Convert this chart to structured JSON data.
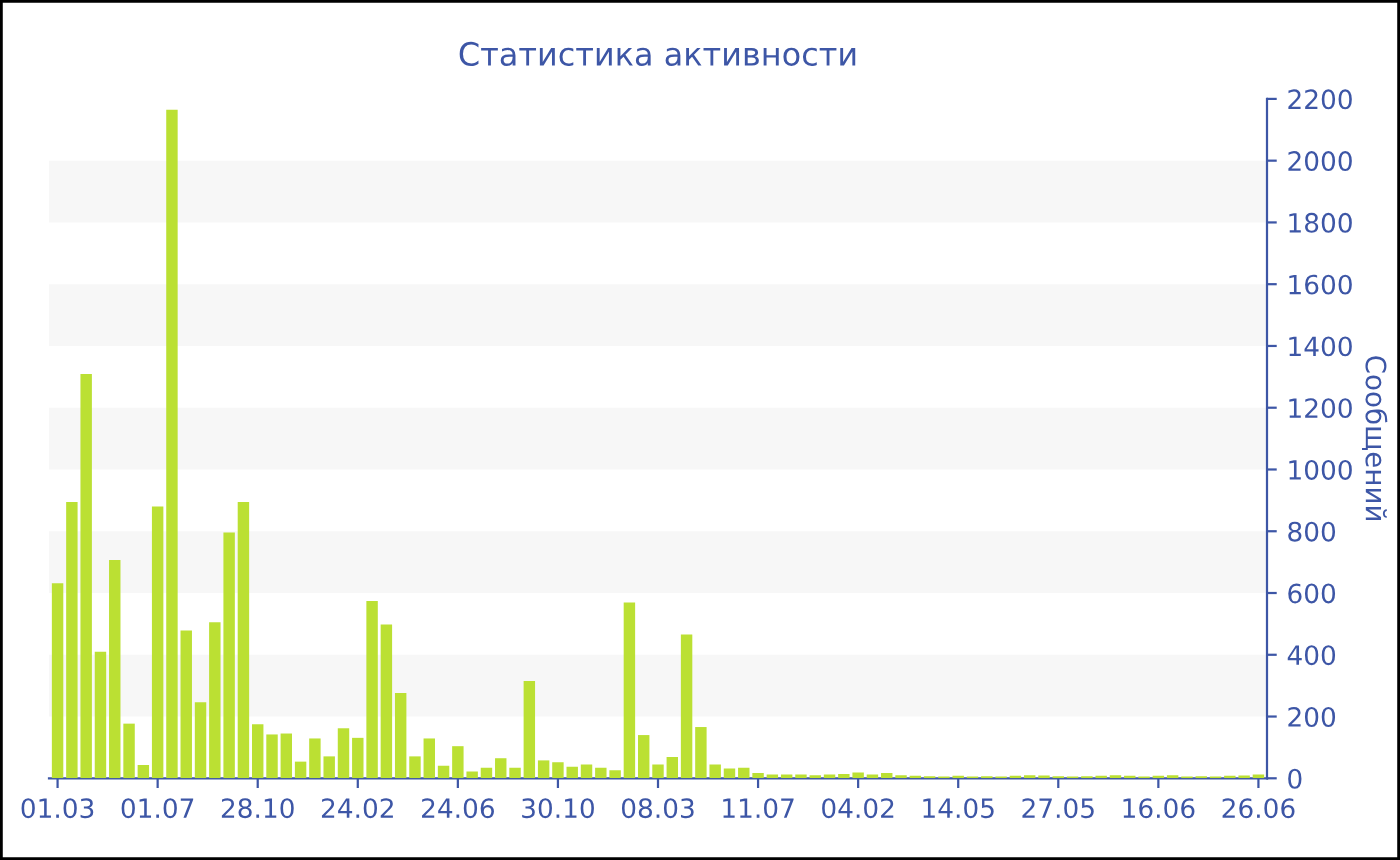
{
  "chart_data": {
    "type": "bar",
    "title": "Статистика активности",
    "ylabel": "Сообщений",
    "categories": [
      "01.03",
      null,
      null,
      null,
      null,
      null,
      null,
      "01.07",
      null,
      null,
      null,
      null,
      null,
      null,
      "28.10",
      null,
      null,
      null,
      null,
      null,
      null,
      "24.02",
      null,
      null,
      null,
      null,
      null,
      null,
      "24.06",
      null,
      null,
      null,
      null,
      null,
      null,
      "30.10",
      null,
      null,
      null,
      null,
      null,
      null,
      "08.03",
      null,
      null,
      null,
      null,
      null,
      null,
      "11.07",
      null,
      null,
      null,
      null,
      null,
      null,
      "04.02",
      null,
      null,
      null,
      null,
      null,
      null,
      "14.05",
      null,
      null,
      null,
      null,
      null,
      null,
      "27.05",
      null,
      null,
      null,
      null,
      null,
      null,
      "16.06",
      null,
      null,
      null,
      null,
      null,
      null,
      "26.06"
    ],
    "values": [
      632,
      895,
      1309,
      410,
      707,
      177,
      43,
      880,
      2165,
      479,
      246,
      505,
      796,
      895,
      175,
      142,
      145,
      54,
      129,
      71,
      162,
      131,
      574,
      498,
      276,
      71,
      129,
      41,
      104,
      22,
      34,
      65,
      34,
      315,
      58,
      52,
      37,
      45,
      34,
      26,
      569,
      140,
      45,
      69,
      466,
      166,
      45,
      32,
      34,
      17,
      12,
      12,
      12,
      10,
      12,
      14,
      19,
      12,
      17,
      10,
      8,
      7,
      6,
      8,
      6,
      7,
      6,
      8,
      10,
      9,
      7,
      6,
      7,
      8,
      10,
      8,
      6,
      8,
      10,
      6,
      7,
      6,
      8,
      9,
      12
    ],
    "color": "#bbe033",
    "ylim": [
      0,
      2200
    ],
    "yticks": [
      0,
      200,
      400,
      600,
      800,
      1000,
      1200,
      1400,
      1600,
      1800,
      2000,
      2200
    ],
    "bands": [
      {
        "axis": "y",
        "from": 200,
        "to": 400,
        "color": "#f7f7f7"
      },
      {
        "axis": "y",
        "from": 600,
        "to": 800,
        "color": "#f7f7f7"
      },
      {
        "axis": "y",
        "from": 1000,
        "to": 1200,
        "color": "#f7f7f7"
      },
      {
        "axis": "y",
        "from": 1400,
        "to": 1600,
        "color": "#f7f7f7"
      },
      {
        "axis": "y",
        "from": 1800,
        "to": 2000,
        "color": "#f7f7f7"
      }
    ],
    "grid": false,
    "legend": false
  }
}
